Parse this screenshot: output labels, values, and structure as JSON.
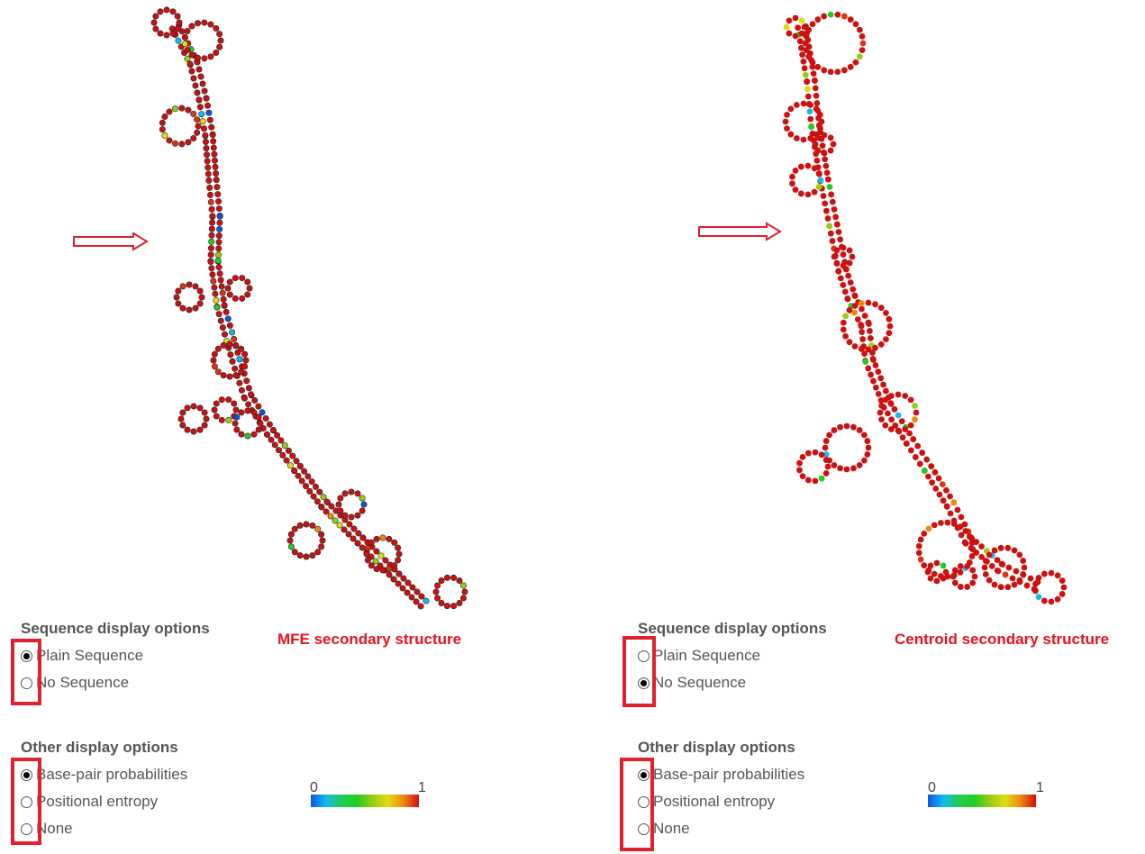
{
  "panels": [
    {
      "title": "MFE secondary structure",
      "sequence_options_title": "Sequence display options",
      "sequence_options": [
        {
          "label": "Plain Sequence",
          "checked": true
        },
        {
          "label": "No Sequence",
          "checked": false
        }
      ],
      "other_options_title": "Other display options",
      "other_options": [
        {
          "label": "Base-pair probabilities",
          "checked": true
        },
        {
          "label": "Positional entropy",
          "checked": false
        },
        {
          "label": "None",
          "checked": false
        }
      ],
      "scale": {
        "min": "0",
        "max": "1"
      }
    },
    {
      "title": "Centroid secondary structure",
      "sequence_options_title": "Sequence display options",
      "sequence_options": [
        {
          "label": "Plain Sequence",
          "checked": false
        },
        {
          "label": "No Sequence",
          "checked": true
        }
      ],
      "other_options_title": "Other display options",
      "other_options": [
        {
          "label": "Base-pair probabilities",
          "checked": true
        },
        {
          "label": "Positional entropy",
          "checked": false
        },
        {
          "label": "None",
          "checked": false
        }
      ],
      "scale": {
        "min": "0",
        "max": "1"
      }
    }
  ],
  "colors": {
    "highlight": "#e0202c",
    "title": "#e8121c",
    "paired": "#cc1111"
  }
}
